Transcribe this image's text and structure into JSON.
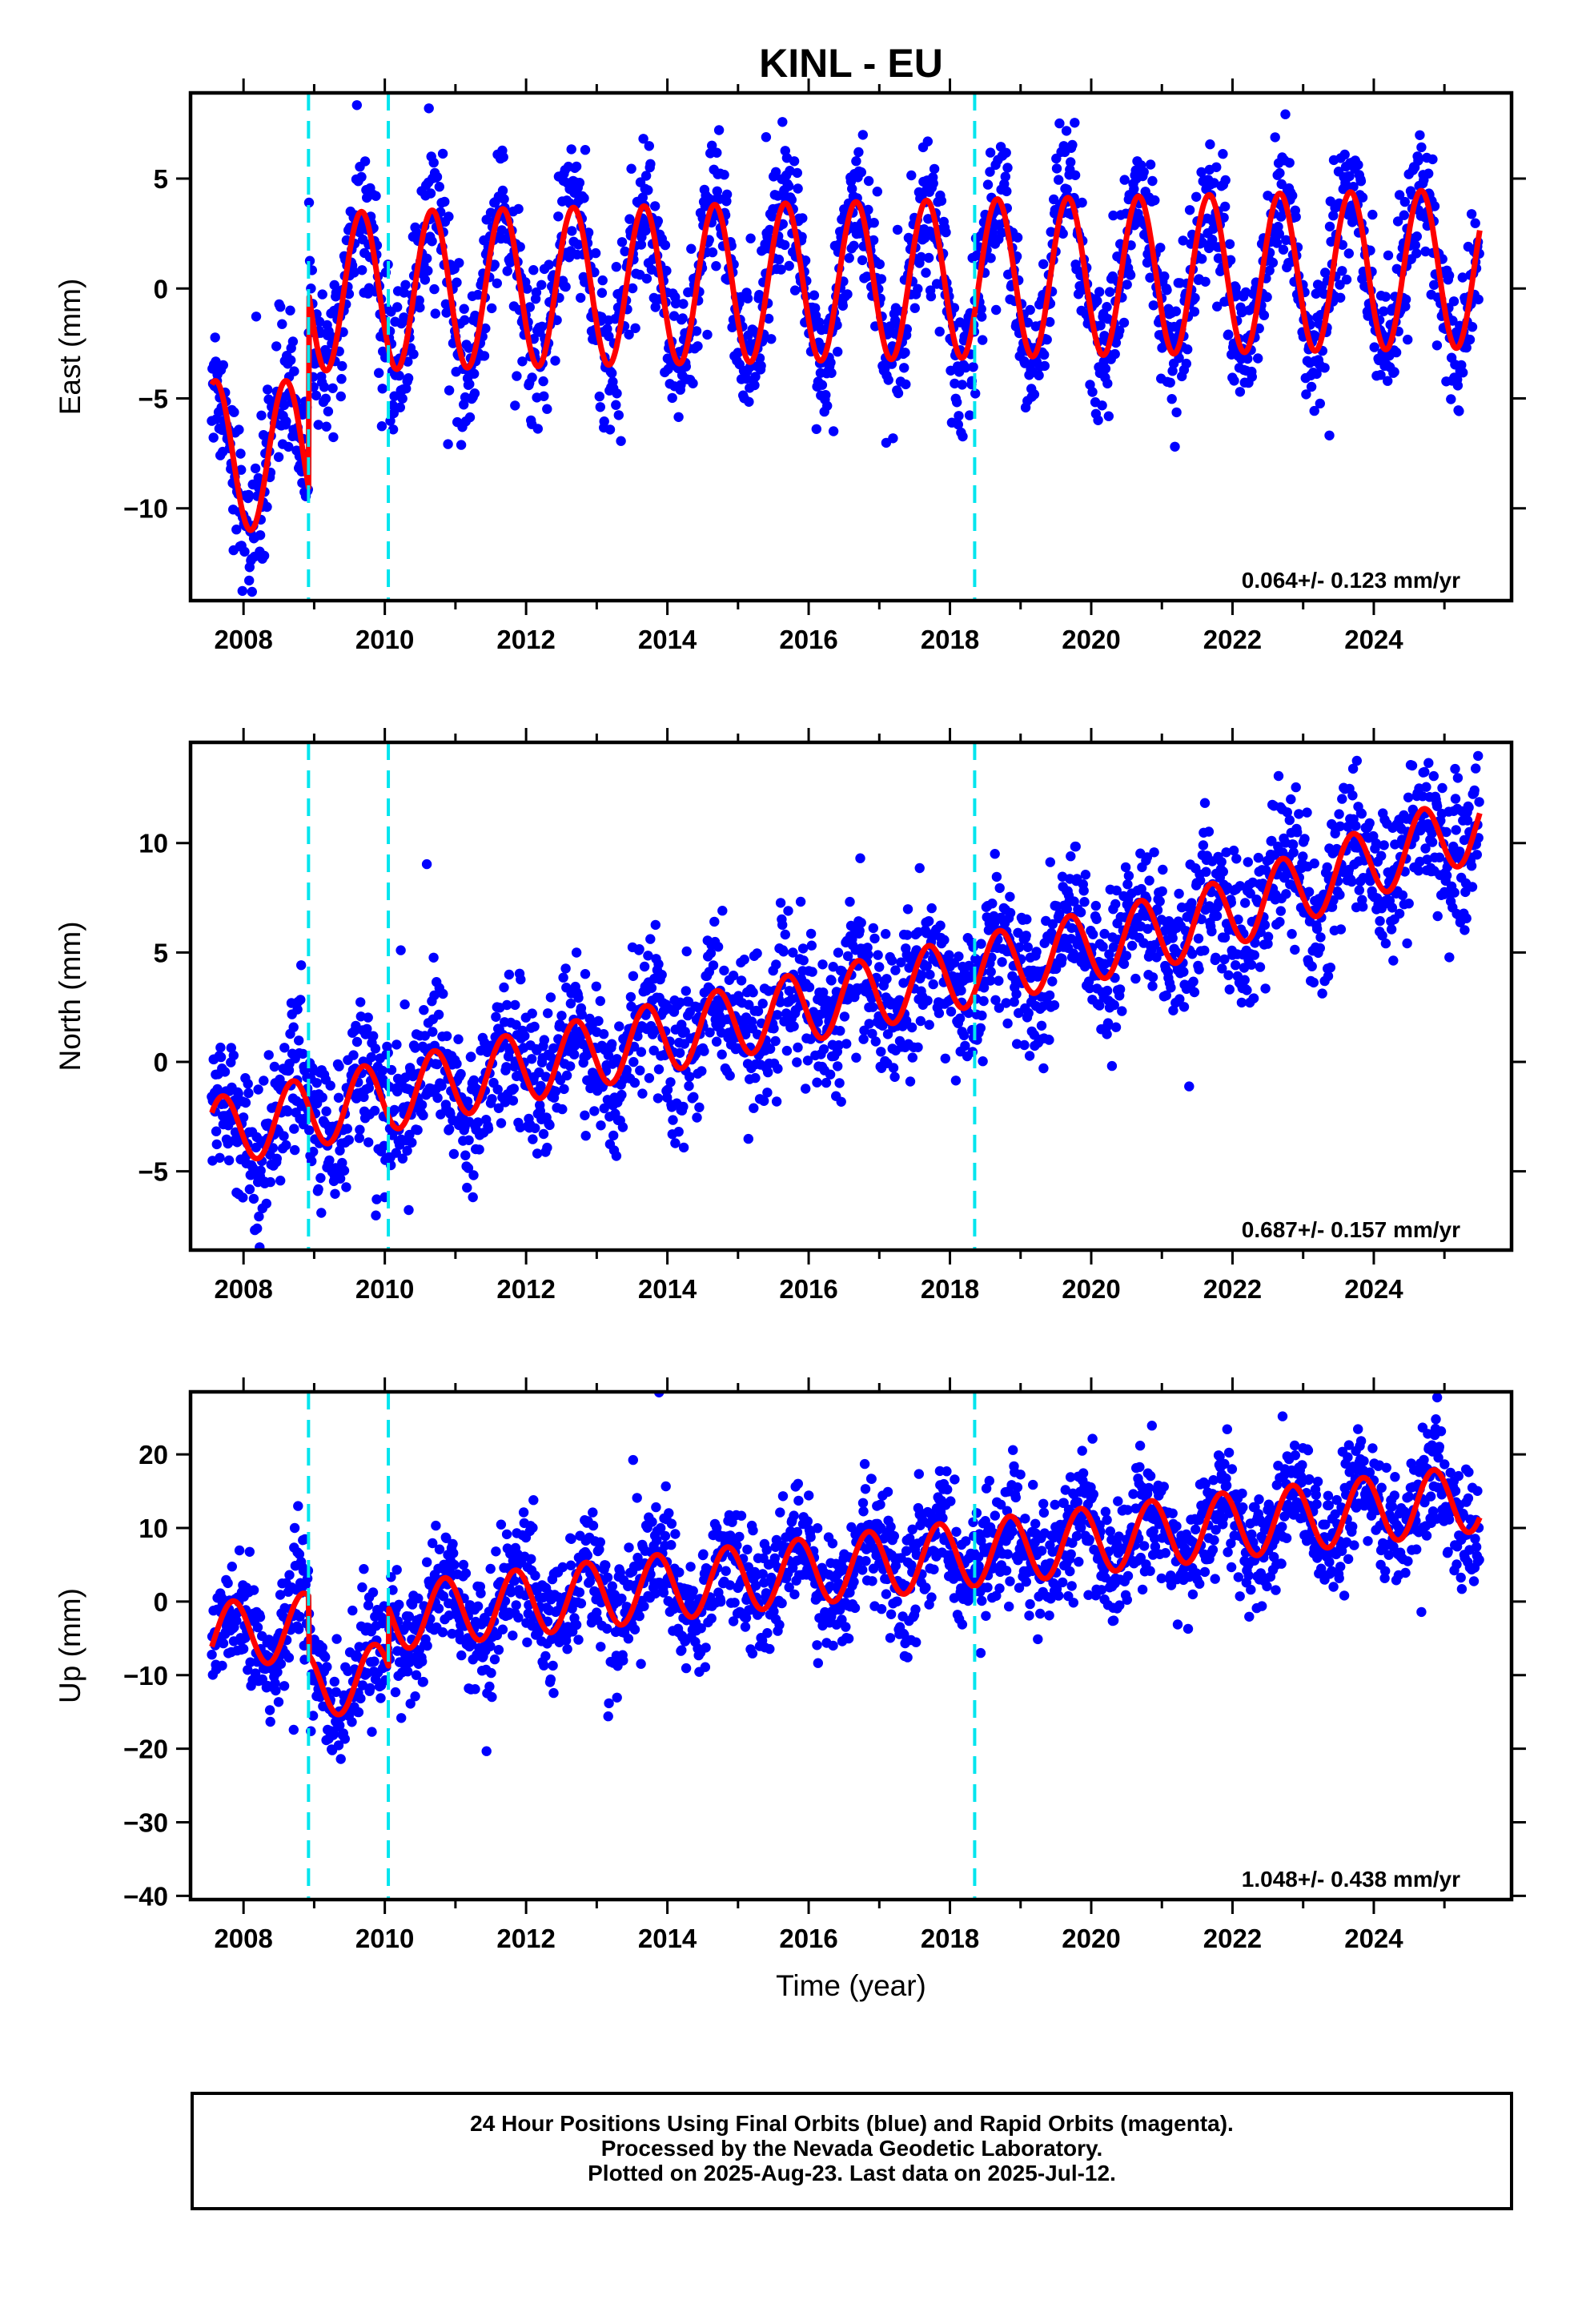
{
  "title": "KINL - EU",
  "colors": {
    "points": "#0000ff",
    "model": "#ff0000",
    "offsets": "#00e5ee"
  },
  "chart_data": [
    {
      "type": "scatter",
      "id": "east",
      "ylabel": "East (mm)",
      "xlabel": "",
      "xlim": [
        2007.25,
        2025.95
      ],
      "ylim": [
        -14.2,
        8.9
      ],
      "yticks": [
        -10,
        -5,
        0,
        5
      ],
      "xticks": [
        2008,
        2010,
        2012,
        2014,
        2016,
        2018,
        2020,
        2022,
        2024
      ],
      "offsets": [
        2008.92,
        2010.05,
        2018.35
      ],
      "rate": "0.064+/- 0.123 mm/yr",
      "model": {
        "amp": 3.6,
        "phase": 0.42,
        "trend": 0.064,
        "base": 0.3,
        "pre_segment": {
          "end": 2008.92,
          "center": -7.6,
          "amp": 3.4
        },
        "post_offset_center": 0.3
      },
      "scatter": {
        "amp": 4.0,
        "noise": 1.6,
        "year_range": [
          2007.55,
          2025.5
        ]
      }
    },
    {
      "type": "scatter",
      "id": "north",
      "ylabel": "North (mm)",
      "xlabel": "",
      "xlim": [
        2007.25,
        2025.95
      ],
      "ylim": [
        -8.6,
        14.6
      ],
      "yticks": [
        -5,
        0,
        5,
        10
      ],
      "xticks": [
        2008,
        2010,
        2012,
        2014,
        2016,
        2018,
        2020,
        2022,
        2024
      ],
      "offsets": [
        2008.92,
        2010.05,
        2018.35
      ],
      "rate": "0.687+/- 0.157 mm/yr",
      "model": {
        "amp": 1.6,
        "phase": 0.45,
        "trend": 0.687,
        "base": -3.3
      },
      "scatter": {
        "amp": 1.8,
        "noise": 1.7,
        "year_range": [
          2007.55,
          2025.5
        ]
      }
    },
    {
      "type": "scatter",
      "id": "up",
      "ylabel": "Up (mm)",
      "xlabel": "Time (year)",
      "xlim": [
        2007.25,
        2025.95
      ],
      "ylim": [
        -40.5,
        28.5
      ],
      "yticks": [
        -40,
        -30,
        -20,
        -10,
        0,
        10,
        20
      ],
      "xticks": [
        2008,
        2010,
        2012,
        2014,
        2016,
        2018,
        2020,
        2022,
        2024
      ],
      "offsets": [
        2008.92,
        2010.05,
        2018.35
      ],
      "rate": "1.048+/- 0.438 mm/yr",
      "model": {
        "amp": 4.5,
        "phase": 0.6,
        "trend": 1.048,
        "base": -4.8
      },
      "scatter": {
        "amp": 5.0,
        "noise": 4.2,
        "year_range": [
          2007.55,
          2025.5
        ]
      }
    }
  ],
  "footer": {
    "line1": "24 Hour Positions Using Final Orbits (blue) and Rapid Orbits (magenta).",
    "line2": "Processed by the Nevada Geodetic Laboratory.",
    "line3": "Plotted on 2025-Aug-23. Last data on 2025-Jul-12."
  }
}
